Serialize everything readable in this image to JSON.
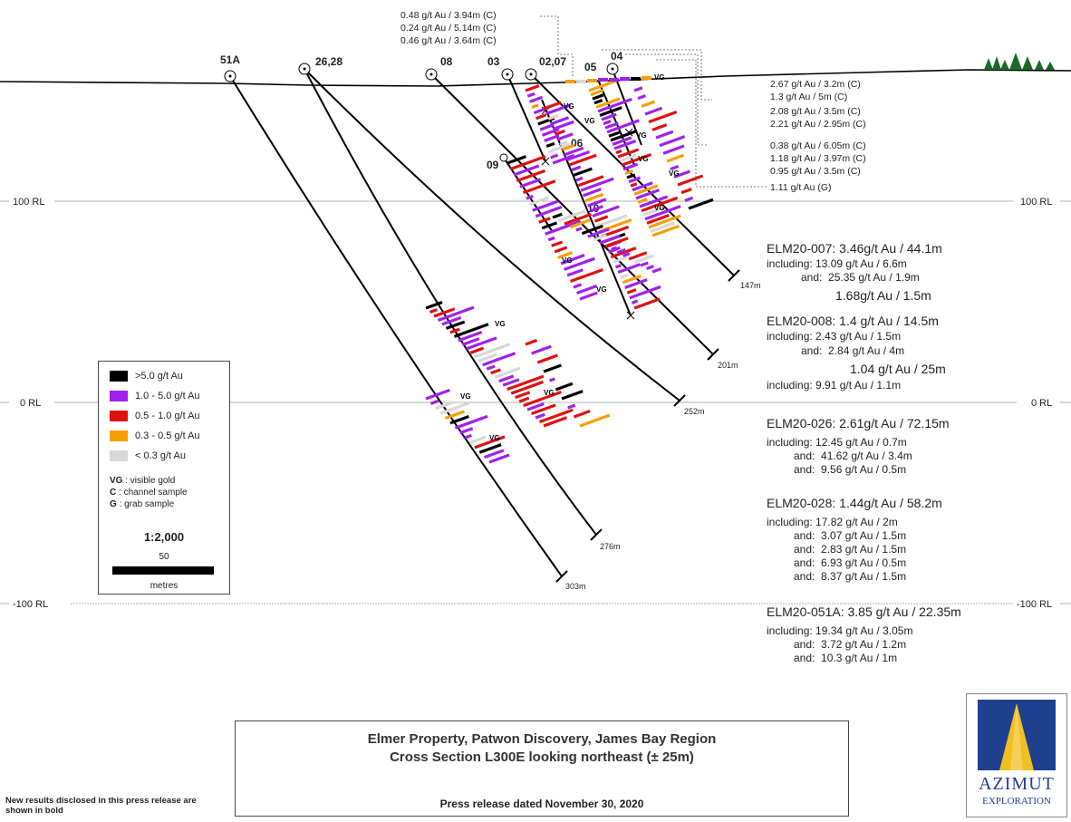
{
  "rl_labels": [
    "100 RL",
    "0 RL",
    "-100 RL"
  ],
  "holes": {
    "h51a": "51A",
    "h2628": "26,28",
    "h08": "08",
    "h03": "03",
    "h0207": "02,07",
    "h04": "04",
    "h05": "05",
    "h06": "06",
    "h09": "09",
    "h10": "10"
  },
  "depths": {
    "d147": "147m",
    "d201": "201m",
    "d252": "252m",
    "d276": "276m",
    "d303": "303m"
  },
  "vg": "VG",
  "channel_samples_top": [
    "0.48 g/t Au / 3.94m (C)",
    "0.24 g/t Au / 5.14m (C)",
    "0.46 g/t Au / 3.64m (C)"
  ],
  "channel_samples_right": [
    "2.67 g/t Au / 3.2m (C)",
    "1.3 g/t Au / 5m (C)",
    "2.08 g/t Au / 3.5m (C)",
    "2.21 g/t Au / 2.95m (C)",
    "0.38 g/t Au / 6.05m (C)",
    "1.18 g/t Au / 3.97m (C)",
    "0.95 g/t Au / 3.5m (C)",
    "1.11 g/t Au (G)"
  ],
  "results": {
    "r007": {
      "head": "ELM20-007: 3.46g/t Au / 44.1m",
      "l1": "including: 13.09 g/t Au / 6.6m",
      "l2": "and:  25.35 g/t Au / 1.9m",
      "l3": "1.68g/t Au / 1.5m"
    },
    "r008": {
      "head": "ELM20-008: 1.4 g/t Au / 14.5m",
      "l1": "including: 2.43 g/t Au / 1.5m",
      "l2": "and:  2.84 g/t Au / 4m",
      "l3": "1.04 g/t Au / 25m",
      "l4": "including: 9.91 g/t Au / 1.1m"
    },
    "r026": {
      "head": "ELM20-026: 2.61g/t Au / 72.15m",
      "l1": "including: 12.45 g/t Au / 0.7m",
      "l2": "and:  41.62 g/t Au / 3.4m",
      "l3": "and:  9.56 g/t Au / 0.5m"
    },
    "r028": {
      "head": "ELM20-028: 1.44g/t Au / 58.2m",
      "l1": "including: 17.82 g/t Au / 2m",
      "l2": "and:  3.07 g/t Au / 1.5m",
      "l3": "and:  2.83 g/t Au / 1.5m",
      "l4": "and:  6.93 g/t Au / 0.5m",
      "l5": "and:  8.37 g/t Au / 1.5m"
    },
    "r051a": {
      "head": "ELM20-051A: 3.85 g/t Au / 22.35m",
      "l1": "including: 19.34 g/t Au / 3.05m",
      "l2": "and:  3.72 g/t Au / 1.2m",
      "l3": "and:  10.3 g/t Au / 1m"
    }
  },
  "legend": {
    "grades": [
      {
        "label": ">5.0 g/t Au",
        "color": "#000000"
      },
      {
        "label": "1.0 - 5.0 g/t Au",
        "color": "#a020f0"
      },
      {
        "label": "0.5 - 1.0 g/t Au",
        "color": "#e01010"
      },
      {
        "label": "0.3 - 0.5 g/t Au",
        "color": "#f5a000"
      },
      {
        "label": "< 0.3 g/t Au",
        "color": "#d8d8d8"
      }
    ],
    "vg_key": "VG",
    "vg_text": ": visible gold",
    "c_key": "C",
    "c_text": ": channel sample",
    "g_key": "G",
    "g_text": ": grab sample",
    "scale": "1:2,000",
    "scale_value": "50",
    "scale_unit": "metres"
  },
  "title": {
    "line1": "Elmer Property, Patwon Discovery, James Bay Region",
    "line2": "Cross Section L300E looking northeast (± 25m)",
    "press": "Press release dated November 30, 2020"
  },
  "footnote": "New results disclosed in this press release are shown in bold",
  "logo": {
    "name": "AZIMUT",
    "sub": "EXPLORATION",
    "blue": "#1f3f8f",
    "gold": "#f0c020"
  }
}
